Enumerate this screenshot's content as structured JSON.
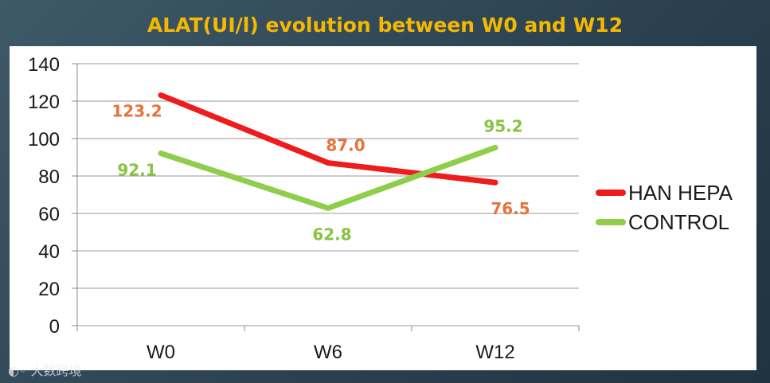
{
  "chart_data": {
    "type": "line",
    "title": "ALAT(UI/l) evolution between W0 and W12",
    "categories": [
      "W0",
      "W6",
      "W12"
    ],
    "series": [
      {
        "name": "HAN HEPA",
        "values": [
          123.2,
          87.0,
          76.5
        ],
        "labels": [
          "123.2",
          "87.0",
          "76.5"
        ],
        "color": "#ee1c1c",
        "label_color": "#e8733a"
      },
      {
        "name": "CONTROL",
        "values": [
          92.1,
          62.8,
          95.2
        ],
        "labels": [
          "92.1",
          "62.8",
          "95.2"
        ],
        "color": "#8fce4a",
        "label_color": "#86c441"
      }
    ],
    "ylim": [
      0,
      140
    ],
    "yticks": [
      "0",
      "20",
      "40",
      "60",
      "80",
      "100",
      "120",
      "140"
    ],
    "grid": true,
    "legend_position": "right"
  },
  "watermark": "大数跨境"
}
